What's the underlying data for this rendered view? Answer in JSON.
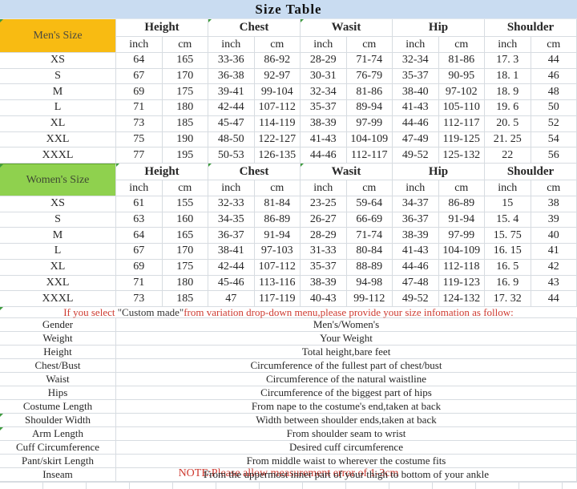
{
  "title": "Size Table",
  "colors": {
    "title_bg": "#C9DCF1",
    "mens_label_bg": "#F8BB12",
    "womens_label_bg": "#8FD14E",
    "red_text": "#CE3B31",
    "gridline": "#D7DCE1"
  },
  "columns": {
    "groups": [
      "Height",
      "Chest",
      "Wasit",
      "Hip",
      "Shoulder"
    ],
    "units": [
      "inch",
      "cm"
    ]
  },
  "mens": {
    "label": "Men's Size",
    "rows": [
      {
        "size": "XS",
        "values": [
          "64",
          "165",
          "33-36",
          "86-92",
          "28-29",
          "71-74",
          "32-34",
          "81-86",
          "17. 3",
          "44"
        ]
      },
      {
        "size": "S",
        "values": [
          "67",
          "170",
          "36-38",
          "92-97",
          "30-31",
          "76-79",
          "35-37",
          "90-95",
          "18. 1",
          "46"
        ]
      },
      {
        "size": "M",
        "values": [
          "69",
          "175",
          "39-41",
          "99-104",
          "32-34",
          "81-86",
          "38-40",
          "97-102",
          "18. 9",
          "48"
        ]
      },
      {
        "size": "L",
        "values": [
          "71",
          "180",
          "42-44",
          "107-112",
          "35-37",
          "89-94",
          "41-43",
          "105-110",
          "19. 6",
          "50"
        ]
      },
      {
        "size": "XL",
        "values": [
          "73",
          "185",
          "45-47",
          "114-119",
          "38-39",
          "97-99",
          "44-46",
          "112-117",
          "20. 5",
          "52"
        ]
      },
      {
        "size": "XXL",
        "values": [
          "75",
          "190",
          "48-50",
          "122-127",
          "41-43",
          "104-109",
          "47-49",
          "119-125",
          "21. 25",
          "54"
        ]
      },
      {
        "size": "XXXL",
        "values": [
          "77",
          "195",
          "50-53",
          "126-135",
          "44-46",
          "112-117",
          "49-52",
          "125-132",
          "22",
          "56"
        ]
      }
    ]
  },
  "womens": {
    "label": "Women's Size",
    "rows": [
      {
        "size": "XS",
        "values": [
          "61",
          "155",
          "32-33",
          "81-84",
          "23-25",
          "59-64",
          "34-37",
          "86-89",
          "15",
          "38"
        ]
      },
      {
        "size": "S",
        "values": [
          "63",
          "160",
          "34-35",
          "86-89",
          "26-27",
          "66-69",
          "36-37",
          "91-94",
          "15. 4",
          "39"
        ]
      },
      {
        "size": "M",
        "values": [
          "64",
          "165",
          "36-37",
          "91-94",
          "28-29",
          "71-74",
          "38-39",
          "97-99",
          "15. 75",
          "40"
        ]
      },
      {
        "size": "L",
        "values": [
          "67",
          "170",
          "38-41",
          "97-103",
          "31-33",
          "80-84",
          "41-43",
          "104-109",
          "16. 15",
          "41"
        ]
      },
      {
        "size": "XL",
        "values": [
          "69",
          "175",
          "42-44",
          "107-112",
          "35-37",
          "88-89",
          "44-46",
          "112-118",
          "16. 5",
          "42"
        ]
      },
      {
        "size": "XXL",
        "values": [
          "71",
          "180",
          "45-46",
          "113-116",
          "38-39",
          "94-98",
          "47-48",
          "119-123",
          "16. 9",
          "43"
        ]
      },
      {
        "size": "XXXL",
        "values": [
          "73",
          "185",
          "47",
          "117-119",
          "40-43",
          "99-112",
          "49-52",
          "124-132",
          "17. 32",
          "44"
        ]
      }
    ]
  },
  "custom_note": {
    "prefix": "If you select ",
    "highlight": "\"Custom made\"",
    "suffix": "from variation drop-down menu,please provide your size infomation as follow:"
  },
  "measurements": [
    {
      "label": "Gender",
      "description": "Men's/Women's"
    },
    {
      "label": "Weight",
      "description": "Your Weight"
    },
    {
      "label": "Height",
      "description": "Total height,bare feet"
    },
    {
      "label": "Chest/Bust",
      "description": "Circumference of the fullest part of chest/bust"
    },
    {
      "label": "Waist",
      "description": "Circumference of the natural waistline"
    },
    {
      "label": "Hips",
      "description": "Circumference of the biggest part of hips"
    },
    {
      "label": "Costume Length",
      "description": "From nape to the costume's end,taken at back"
    },
    {
      "label": "Shoulder Width",
      "description": "Width between shoulder ends,taken at back"
    },
    {
      "label": "Arm Length",
      "description": "From shoulder seam to wrist"
    },
    {
      "label": "Cuff Circumference",
      "description": "Desired cuff circumference"
    },
    {
      "label": "Pant/skirt Length",
      "description": "From middle waist to wherever the costume fits"
    },
    {
      "label": "Inseam",
      "description": "From the uppermost inner part of your thigh to bottom of your ankle"
    }
  ],
  "footer_note": "NOTE:Please allow measurement error of 1-3cm"
}
